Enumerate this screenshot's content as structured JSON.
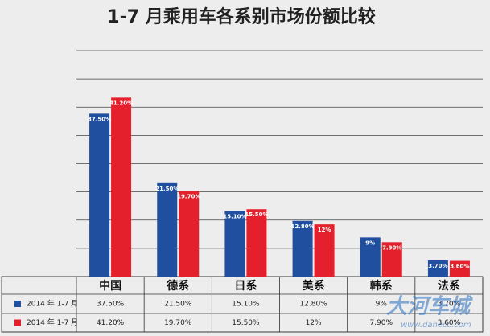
{
  "chart_data": {
    "type": "bar",
    "title": "1-7 月乘用车各系别市场份额比较",
    "categories": [
      "中国",
      "德系",
      "日系",
      "美系",
      "韩系",
      "法系"
    ],
    "series": [
      {
        "name": "2014 年 1-7 月",
        "color": "#1f4f9e",
        "values": [
          37.5,
          21.5,
          15.1,
          12.8,
          9,
          3.7
        ],
        "value_labels": [
          "37.50%",
          "21.50%",
          "15.10%",
          "12.80%",
          "9%",
          "3.70%"
        ]
      },
      {
        "name": "2014 年 1-7 月",
        "color": "#e3202b",
        "values": [
          41.2,
          19.7,
          15.5,
          12,
          7.9,
          3.6
        ],
        "value_labels": [
          "41.20%",
          "19.70%",
          "15.50%",
          "12%",
          "7.90%",
          "3.60%"
        ]
      }
    ],
    "ylim": [
      0,
      52
    ],
    "yticks": [
      0,
      6.5,
      13,
      19.5,
      26,
      32.5,
      39,
      45.5,
      52
    ],
    "grid": true,
    "watermark": [
      "大河车城",
      "www.dahecc.com"
    ]
  }
}
